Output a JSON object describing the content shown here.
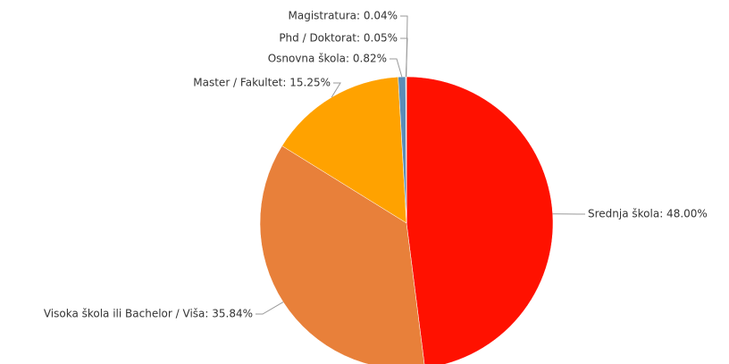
{
  "chart_data": {
    "type": "pie",
    "values": [
      48.0,
      35.84,
      15.25,
      0.82,
      0.05,
      0.04
    ],
    "value_labels": [
      "Srednja škola: 48.00%",
      "Visoka škola ili Bachelor / Viša: 35.84%",
      "Master / Fakultet: 15.25%",
      "Osnovna škola: 0.82%",
      "Phd / Doktorat: 0.05%",
      "Magistratura: 0.04%"
    ],
    "colors": [
      "#ff1100",
      "#e8803a",
      "#ffa200",
      "#5b8db8",
      "#9a9a9a",
      "#b0b0b0"
    ]
  }
}
